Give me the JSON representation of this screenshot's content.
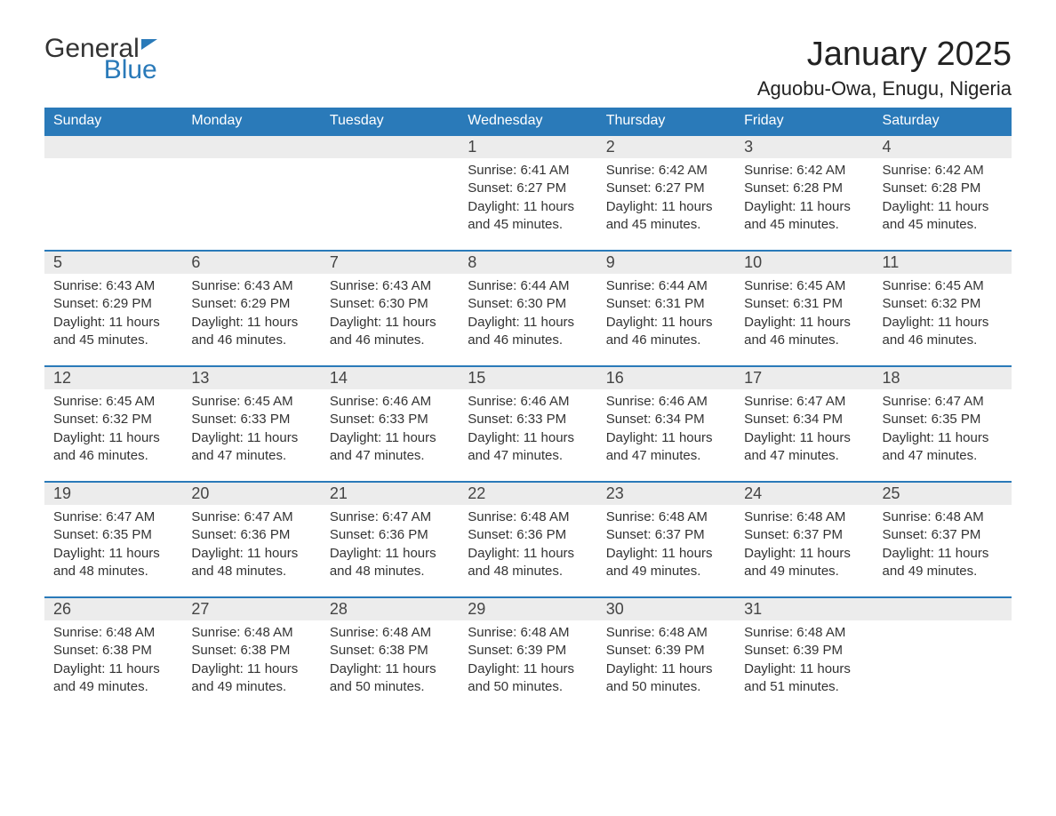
{
  "logo": {
    "text_general": "General",
    "text_blue": "Blue"
  },
  "header": {
    "month_title": "January 2025",
    "location": "Aguobu-Owa, Enugu, Nigeria"
  },
  "styling": {
    "header_bg_color": "#2a7ab9",
    "header_text_color": "#ffffff",
    "day_number_bg": "#ececec",
    "border_color": "#2a7ab9",
    "body_text_color": "#333333",
    "page_bg": "#ffffff",
    "month_title_fontsize": 38,
    "location_fontsize": 22,
    "weekday_fontsize": 16,
    "daynum_fontsize": 18,
    "content_fontsize": 15
  },
  "weekdays": [
    "Sunday",
    "Monday",
    "Tuesday",
    "Wednesday",
    "Thursday",
    "Friday",
    "Saturday"
  ],
  "weeks": [
    [
      null,
      null,
      null,
      {
        "day": "1",
        "sunrise": "Sunrise: 6:41 AM",
        "sunset": "Sunset: 6:27 PM",
        "daylight": "Daylight: 11 hours and 45 minutes."
      },
      {
        "day": "2",
        "sunrise": "Sunrise: 6:42 AM",
        "sunset": "Sunset: 6:27 PM",
        "daylight": "Daylight: 11 hours and 45 minutes."
      },
      {
        "day": "3",
        "sunrise": "Sunrise: 6:42 AM",
        "sunset": "Sunset: 6:28 PM",
        "daylight": "Daylight: 11 hours and 45 minutes."
      },
      {
        "day": "4",
        "sunrise": "Sunrise: 6:42 AM",
        "sunset": "Sunset: 6:28 PM",
        "daylight": "Daylight: 11 hours and 45 minutes."
      }
    ],
    [
      {
        "day": "5",
        "sunrise": "Sunrise: 6:43 AM",
        "sunset": "Sunset: 6:29 PM",
        "daylight": "Daylight: 11 hours and 45 minutes."
      },
      {
        "day": "6",
        "sunrise": "Sunrise: 6:43 AM",
        "sunset": "Sunset: 6:29 PM",
        "daylight": "Daylight: 11 hours and 46 minutes."
      },
      {
        "day": "7",
        "sunrise": "Sunrise: 6:43 AM",
        "sunset": "Sunset: 6:30 PM",
        "daylight": "Daylight: 11 hours and 46 minutes."
      },
      {
        "day": "8",
        "sunrise": "Sunrise: 6:44 AM",
        "sunset": "Sunset: 6:30 PM",
        "daylight": "Daylight: 11 hours and 46 minutes."
      },
      {
        "day": "9",
        "sunrise": "Sunrise: 6:44 AM",
        "sunset": "Sunset: 6:31 PM",
        "daylight": "Daylight: 11 hours and 46 minutes."
      },
      {
        "day": "10",
        "sunrise": "Sunrise: 6:45 AM",
        "sunset": "Sunset: 6:31 PM",
        "daylight": "Daylight: 11 hours and 46 minutes."
      },
      {
        "day": "11",
        "sunrise": "Sunrise: 6:45 AM",
        "sunset": "Sunset: 6:32 PM",
        "daylight": "Daylight: 11 hours and 46 minutes."
      }
    ],
    [
      {
        "day": "12",
        "sunrise": "Sunrise: 6:45 AM",
        "sunset": "Sunset: 6:32 PM",
        "daylight": "Daylight: 11 hours and 46 minutes."
      },
      {
        "day": "13",
        "sunrise": "Sunrise: 6:45 AM",
        "sunset": "Sunset: 6:33 PM",
        "daylight": "Daylight: 11 hours and 47 minutes."
      },
      {
        "day": "14",
        "sunrise": "Sunrise: 6:46 AM",
        "sunset": "Sunset: 6:33 PM",
        "daylight": "Daylight: 11 hours and 47 minutes."
      },
      {
        "day": "15",
        "sunrise": "Sunrise: 6:46 AM",
        "sunset": "Sunset: 6:33 PM",
        "daylight": "Daylight: 11 hours and 47 minutes."
      },
      {
        "day": "16",
        "sunrise": "Sunrise: 6:46 AM",
        "sunset": "Sunset: 6:34 PM",
        "daylight": "Daylight: 11 hours and 47 minutes."
      },
      {
        "day": "17",
        "sunrise": "Sunrise: 6:47 AM",
        "sunset": "Sunset: 6:34 PM",
        "daylight": "Daylight: 11 hours and 47 minutes."
      },
      {
        "day": "18",
        "sunrise": "Sunrise: 6:47 AM",
        "sunset": "Sunset: 6:35 PM",
        "daylight": "Daylight: 11 hours and 47 minutes."
      }
    ],
    [
      {
        "day": "19",
        "sunrise": "Sunrise: 6:47 AM",
        "sunset": "Sunset: 6:35 PM",
        "daylight": "Daylight: 11 hours and 48 minutes."
      },
      {
        "day": "20",
        "sunrise": "Sunrise: 6:47 AM",
        "sunset": "Sunset: 6:36 PM",
        "daylight": "Daylight: 11 hours and 48 minutes."
      },
      {
        "day": "21",
        "sunrise": "Sunrise: 6:47 AM",
        "sunset": "Sunset: 6:36 PM",
        "daylight": "Daylight: 11 hours and 48 minutes."
      },
      {
        "day": "22",
        "sunrise": "Sunrise: 6:48 AM",
        "sunset": "Sunset: 6:36 PM",
        "daylight": "Daylight: 11 hours and 48 minutes."
      },
      {
        "day": "23",
        "sunrise": "Sunrise: 6:48 AM",
        "sunset": "Sunset: 6:37 PM",
        "daylight": "Daylight: 11 hours and 49 minutes."
      },
      {
        "day": "24",
        "sunrise": "Sunrise: 6:48 AM",
        "sunset": "Sunset: 6:37 PM",
        "daylight": "Daylight: 11 hours and 49 minutes."
      },
      {
        "day": "25",
        "sunrise": "Sunrise: 6:48 AM",
        "sunset": "Sunset: 6:37 PM",
        "daylight": "Daylight: 11 hours and 49 minutes."
      }
    ],
    [
      {
        "day": "26",
        "sunrise": "Sunrise: 6:48 AM",
        "sunset": "Sunset: 6:38 PM",
        "daylight": "Daylight: 11 hours and 49 minutes."
      },
      {
        "day": "27",
        "sunrise": "Sunrise: 6:48 AM",
        "sunset": "Sunset: 6:38 PM",
        "daylight": "Daylight: 11 hours and 49 minutes."
      },
      {
        "day": "28",
        "sunrise": "Sunrise: 6:48 AM",
        "sunset": "Sunset: 6:38 PM",
        "daylight": "Daylight: 11 hours and 50 minutes."
      },
      {
        "day": "29",
        "sunrise": "Sunrise: 6:48 AM",
        "sunset": "Sunset: 6:39 PM",
        "daylight": "Daylight: 11 hours and 50 minutes."
      },
      {
        "day": "30",
        "sunrise": "Sunrise: 6:48 AM",
        "sunset": "Sunset: 6:39 PM",
        "daylight": "Daylight: 11 hours and 50 minutes."
      },
      {
        "day": "31",
        "sunrise": "Sunrise: 6:48 AM",
        "sunset": "Sunset: 6:39 PM",
        "daylight": "Daylight: 11 hours and 51 minutes."
      },
      null
    ]
  ]
}
